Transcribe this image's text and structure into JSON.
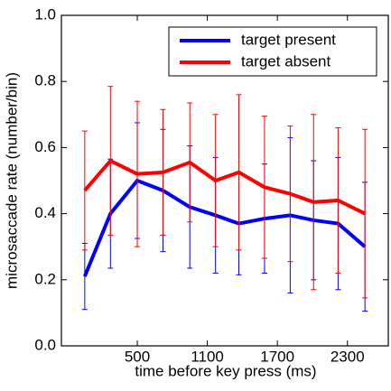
{
  "chart_data": {
    "type": "line",
    "xlabel": "time before key press (ms)",
    "ylabel": "microsaccade rate (number/bin)",
    "x": [
      50,
      270,
      500,
      720,
      950,
      1170,
      1370,
      1590,
      1810,
      2010,
      2220,
      2450
    ],
    "series": [
      {
        "name": "target present",
        "color": "#0000ff",
        "values": [
          0.21,
          0.4,
          0.5,
          0.47,
          0.42,
          0.395,
          0.37,
          0.385,
          0.395,
          0.38,
          0.37,
          0.3
        ],
        "errors": [
          0.1,
          0.165,
          0.175,
          0.185,
          0.185,
          0.175,
          0.155,
          0.165,
          0.235,
          0.18,
          0.2,
          0.195
        ]
      },
      {
        "name": "target absent",
        "color": "#ff0000",
        "values": [
          0.47,
          0.56,
          0.52,
          0.525,
          0.555,
          0.5,
          0.525,
          0.48,
          0.46,
          0.435,
          0.44,
          0.4
        ],
        "errors": [
          0.18,
          0.225,
          0.22,
          0.19,
          0.18,
          0.2,
          0.235,
          0.215,
          0.205,
          0.265,
          0.22,
          0.255
        ]
      }
    ],
    "xlim": [
      -150,
      2650
    ],
    "xticks": [
      500,
      1100,
      1700,
      2300
    ],
    "ylim": [
      0,
      1
    ],
    "yticks": [
      {
        "value": 0,
        "label": "0.0"
      },
      0.2,
      0.4,
      0.6,
      0.8,
      {
        "value": 1,
        "label": "1.0"
      }
    ],
    "legend": "upper right"
  }
}
